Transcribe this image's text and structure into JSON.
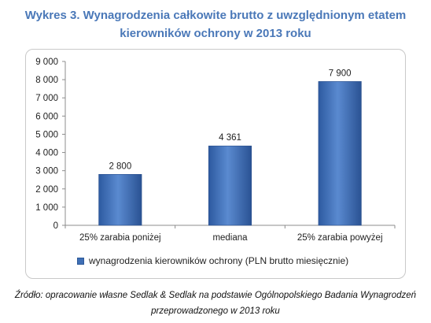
{
  "title_line1": "Wykres 3. Wynagrodzenia całkowite brutto z uwzględnionym etatem",
  "title_line2": "kierowników ochrony w 2013 roku",
  "source_line1": "Źródło: opracowanie własne Sedlak & Sedlak na podstawie Ogólnopolskiego Badania Wynagrodzeń",
  "source_line2": "przeprowadzonego w 2013 roku",
  "chart_data": {
    "type": "bar",
    "categories": [
      "25% zarabia poniżej",
      "mediana",
      "25% zarabia powyżej"
    ],
    "series": [
      {
        "name": "wynagrodzenia kierowników ochrony (PLN brutto miesięcznie)",
        "values": [
          2800,
          4361,
          7900
        ],
        "value_labels": [
          "2 800",
          "4 361",
          "7 900"
        ]
      }
    ],
    "ylim": [
      0,
      9000
    ],
    "yticks": [
      0,
      1000,
      2000,
      3000,
      4000,
      5000,
      6000,
      7000,
      8000,
      9000
    ],
    "ytick_labels": [
      "0",
      "1 000",
      "2 000",
      "3 000",
      "4 000",
      "5 000",
      "6 000",
      "7 000",
      "8 000",
      "9 000"
    ],
    "grid": false,
    "legend_position": "bottom",
    "bar_color": "#3f6fb5"
  }
}
